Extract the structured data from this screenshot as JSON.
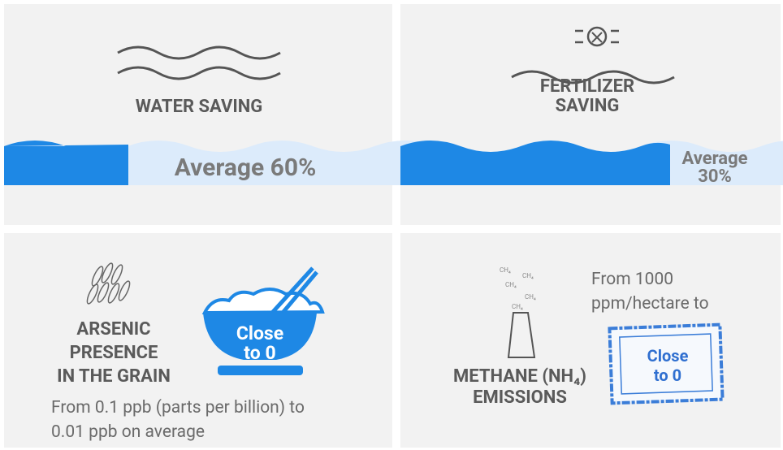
{
  "panels": [
    {
      "title_lines": [
        "WATER SAVING"
      ],
      "value_lines": [
        "Average 60%"
      ]
    },
    {
      "title_lines": [
        "FERTILIZER",
        "SAVING"
      ],
      "value_lines": [
        "Average",
        "30%"
      ]
    },
    {
      "title_lines": [
        "ARSENIC",
        "PRESENCE",
        "IN THE GRAIN"
      ],
      "badge_lines": [
        "Close",
        "to 0"
      ],
      "text_lines": [
        "From 0.1 ppb (parts per billion) to",
        "0.01 ppb on average"
      ]
    },
    {
      "title_lines": [
        "METHANE (NH₄)",
        "EMISSIONS"
      ],
      "badge_lines": [
        "Close",
        "to 0"
      ],
      "text_lines": [
        "From 1000",
        "ppm/hectare to"
      ],
      "gas_labels": [
        "CH₄",
        "CH₄",
        "CH₄",
        "CH₄",
        "CH₄"
      ]
    }
  ]
}
